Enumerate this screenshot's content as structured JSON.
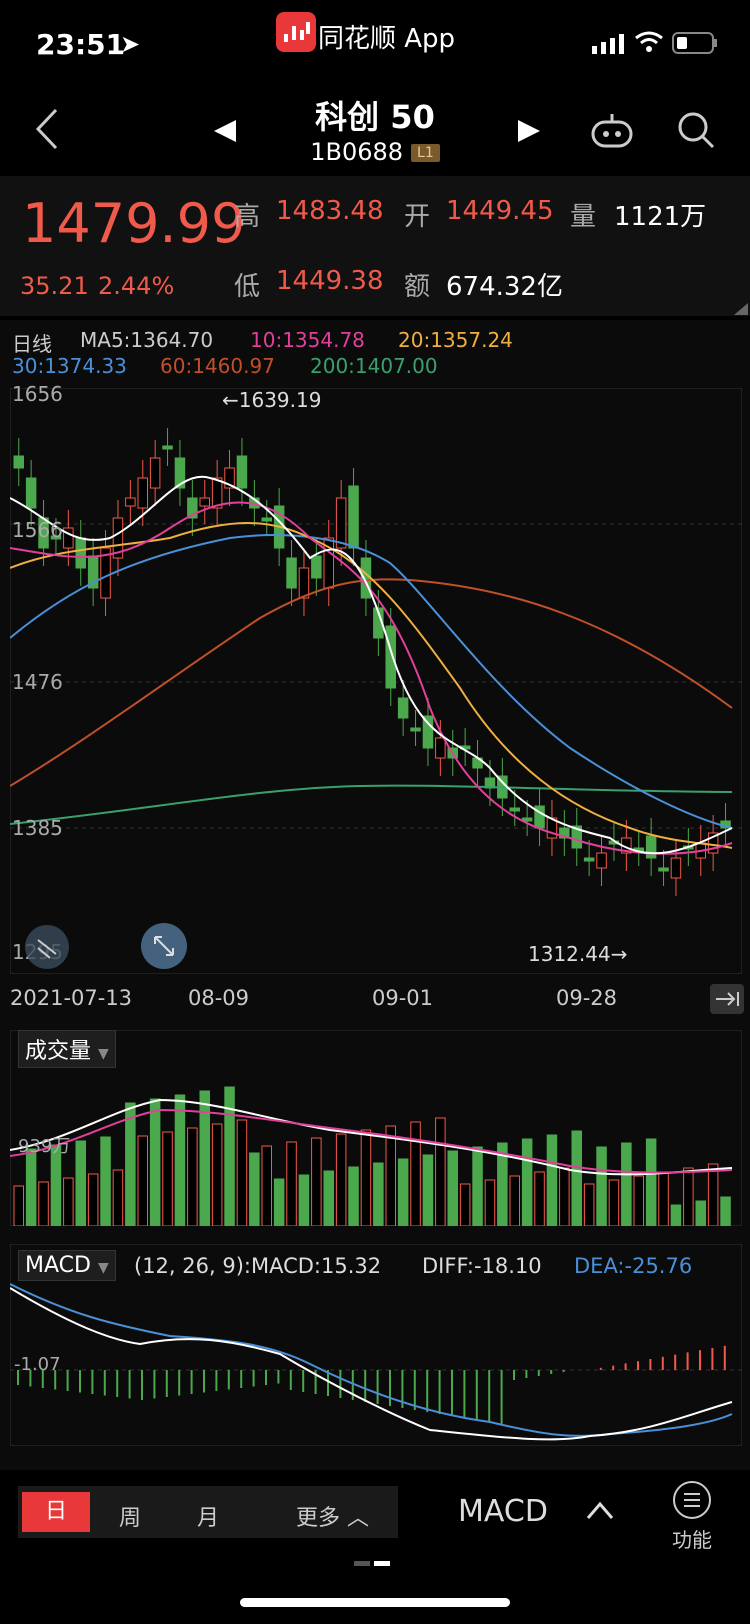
{
  "status_bar": {
    "time": "23:51",
    "app_name": "同花顺 App"
  },
  "nav": {
    "title": "科创 50",
    "code": "1B0688",
    "level_badge": "L1"
  },
  "quote": {
    "price": "1479.99",
    "change": "35.21",
    "change_pct": "2.44%",
    "high_label": "高",
    "high": "1483.48",
    "open_label": "开",
    "open": "1449.45",
    "volume_label": "量",
    "volume": "1121万",
    "low_label": "低",
    "low": "1449.38",
    "amount_label": "额",
    "amount": "674.32亿"
  },
  "ma_legend": {
    "period": "日线",
    "ma5": "MA5:1364.70",
    "ma10": "10:1354.78",
    "ma20": "20:1357.24",
    "ma30": "30:1374.33",
    "ma60": "60:1460.97",
    "ma200": "200:1407.00"
  },
  "price_axis": [
    "1656",
    "1566",
    "1476",
    "1385",
    "1295"
  ],
  "annotations": {
    "high": "←1639.19",
    "low": "1312.44→"
  },
  "date_axis": [
    "2021-07-13",
    "08-09",
    "09-01",
    "09-28"
  ],
  "volume_panel": {
    "title": "成交量",
    "scale": "939万"
  },
  "macd_panel": {
    "title": "MACD",
    "params": "(12, 26, 9):MACD:15.32",
    "diff": "DIFF:-18.10",
    "dea": "DEA:-25.76",
    "scale": "-1.07"
  },
  "bottom_bar": {
    "tabs": [
      "日",
      "周",
      "月",
      "更多"
    ],
    "indicator": "MACD",
    "func_label": "功能"
  },
  "colors": {
    "up": "#f05a4a",
    "down": "#4ca84c",
    "ma5": "#ffffff",
    "ma10": "#e0409a",
    "ma20": "#f0b040",
    "ma30": "#4a90d9",
    "ma60": "#c0502a",
    "ma200": "#3aa070"
  }
}
